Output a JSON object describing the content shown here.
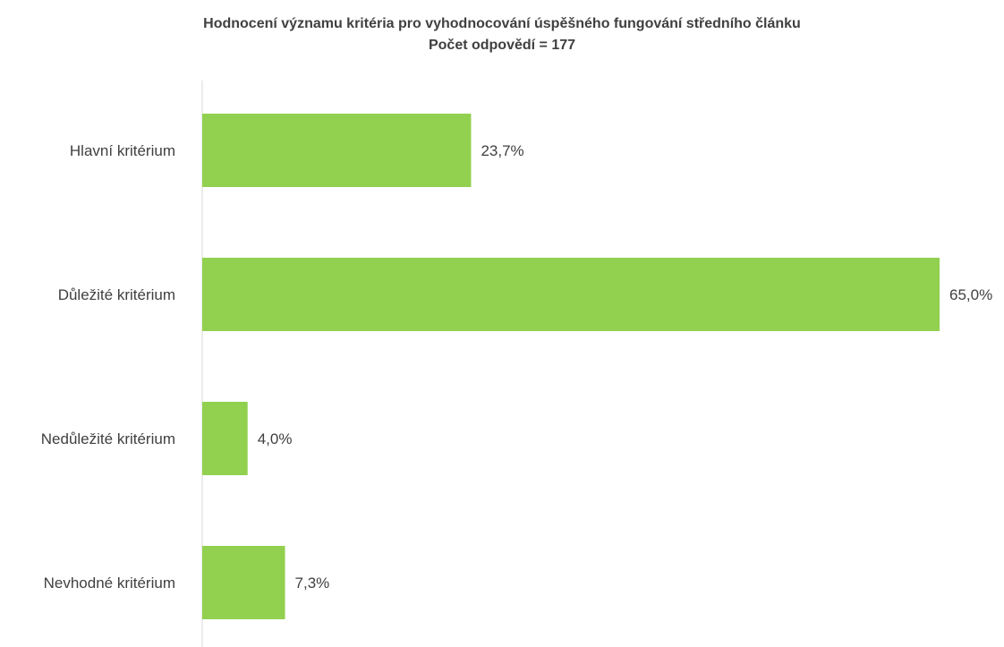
{
  "chart_data": {
    "type": "bar",
    "orientation": "horizontal",
    "title": "Hodnocení významu kritéria pro vyhodnocování úspěšného fungování středního článku",
    "subtitle": "Počet odpovědí = 177",
    "categories": [
      "Hlavní kritérium",
      "Důležité kritérium",
      "Nedůležité kritérium",
      "Nevhodné kritérium"
    ],
    "values": [
      23.7,
      65.0,
      4.0,
      7.3
    ],
    "value_labels": [
      "23,7%",
      "65,0%",
      "4,0%",
      "7,3%"
    ],
    "xlim": [
      0,
      65.0
    ],
    "grid": false,
    "legend": "none",
    "bar_color": "#92d050",
    "axis_color": "#d9d9d9",
    "text_color": "#404040"
  }
}
